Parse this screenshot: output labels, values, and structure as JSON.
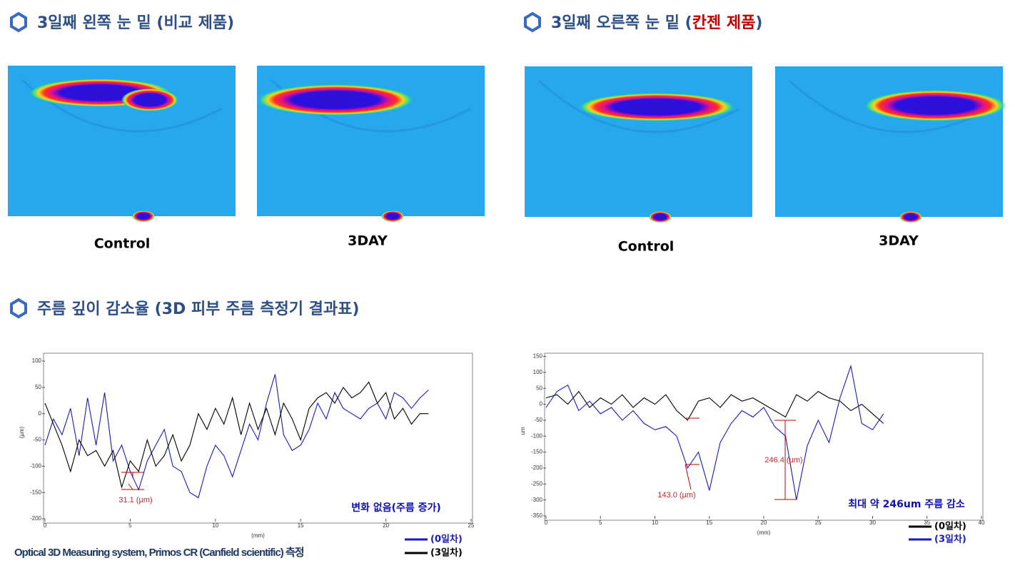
{
  "sections": [
    {
      "title": "3일째 왼쪽 눈 밑 (비교 제품)",
      "captions": [
        "Control",
        "3DAY"
      ]
    },
    {
      "title_start": "3일째 오른쪽 눈 밑 (",
      "title_highlight": "칸젠 제품",
      "title_end": ")",
      "captions": [
        "Control",
        "3DAY"
      ]
    }
  ],
  "results_title": "주름 깊이 감소율 (3D 피부 주름 측정기 결과표)",
  "footer": "Optical 3D Measuring system, Primos CR (Canfield scientific)  측정",
  "chart_data": [
    {
      "type": "line",
      "x_label": "(mm)",
      "y_label": "(µm)",
      "annotations": [
        "31.1  (µm)"
      ],
      "note": "변화 없음(주름 증가)",
      "xlim": [
        0,
        25
      ],
      "xticks": [
        0,
        5,
        10,
        15,
        20,
        25
      ],
      "ylim": [
        -200,
        115
      ],
      "yticks": [
        -200,
        -150,
        -100,
        -50,
        0,
        50,
        100
      ],
      "x": [
        0,
        0.5,
        1,
        1.5,
        2,
        2.5,
        3,
        3.5,
        4,
        4.5,
        5,
        5.5,
        6,
        6.5,
        7,
        7.5,
        8,
        8.5,
        9,
        9.5,
        10,
        10.5,
        11,
        11.5,
        12,
        12.5,
        13,
        13.5,
        14,
        14.5,
        15,
        15.5,
        16,
        16.5,
        17,
        17.5,
        18,
        18.5,
        19,
        19.5,
        20,
        20.5,
        21,
        21.5,
        22,
        22.5
      ],
      "series": [
        {
          "name": "(0일차)",
          "color": "#1a1ab8",
          "values": [
            -60,
            -10,
            -40,
            10,
            -80,
            30,
            -60,
            40,
            -90,
            -60,
            -110,
            -145,
            -90,
            -60,
            -30,
            -100,
            -110,
            -150,
            -160,
            -100,
            -60,
            -80,
            -120,
            -70,
            -20,
            -50,
            20,
            75,
            -40,
            -70,
            -60,
            -30,
            20,
            -10,
            40,
            10,
            0,
            -10,
            10,
            20,
            -10,
            40,
            30,
            10,
            30,
            45
          ]
        },
        {
          "name": "(3일차)",
          "color": "#000000",
          "values": [
            20,
            -20,
            -60,
            -110,
            -50,
            -80,
            -70,
            -100,
            -70,
            -140,
            -90,
            -110,
            -50,
            -100,
            -80,
            -40,
            -90,
            -60,
            0,
            -30,
            10,
            -20,
            30,
            -40,
            20,
            -30,
            10,
            -40,
            20,
            -10,
            -50,
            10,
            30,
            40,
            20,
            50,
            30,
            40,
            60,
            20,
            40,
            -10,
            10,
            -20,
            0,
            0
          ]
        }
      ]
    },
    {
      "type": "line",
      "x_label": "(mm)",
      "y_label": "um",
      "annotations": [
        "143.0  (µm)",
        "246.4  (µm)"
      ],
      "note": "최대 약 246um 주름 감소",
      "xlim": [
        0,
        40
      ],
      "xticks": [
        0,
        5,
        10,
        15,
        20,
        25,
        30,
        35,
        40
      ],
      "ylim": [
        -350,
        160
      ],
      "yticks": [
        -350,
        -300,
        -250,
        -200,
        -150,
        -100,
        -50,
        0,
        50,
        100,
        150
      ],
      "x": [
        0,
        1,
        2,
        3,
        4,
        5,
        6,
        7,
        8,
        9,
        10,
        11,
        12,
        13,
        14,
        15,
        16,
        17,
        18,
        19,
        20,
        21,
        22,
        23,
        24,
        25,
        26,
        27,
        28,
        29,
        30,
        31
      ],
      "series": [
        {
          "name": "(0일차)",
          "color": "#000000",
          "values": [
            20,
            30,
            0,
            40,
            -10,
            20,
            0,
            30,
            -10,
            20,
            0,
            30,
            -20,
            -50,
            10,
            20,
            -10,
            30,
            10,
            20,
            0,
            -20,
            -40,
            30,
            10,
            40,
            20,
            10,
            -20,
            0,
            -30,
            -60
          ]
        },
        {
          "name": "(3일차)",
          "color": "#1a1ab8",
          "values": [
            -10,
            40,
            60,
            -20,
            10,
            -30,
            -10,
            -50,
            -20,
            -60,
            -80,
            -70,
            -100,
            -200,
            -150,
            -270,
            -120,
            -60,
            -20,
            -40,
            -10,
            -70,
            -100,
            -300,
            -130,
            -50,
            -120,
            20,
            120,
            -60,
            -80,
            -30
          ]
        }
      ]
    }
  ]
}
